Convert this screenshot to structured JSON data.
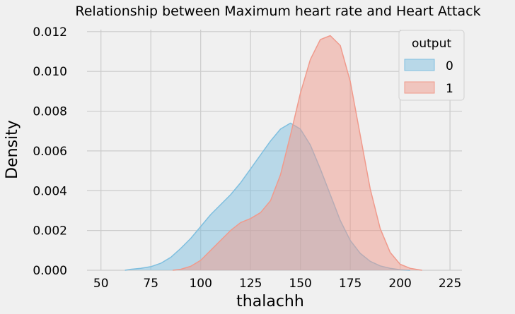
{
  "chart_data": {
    "type": "area",
    "subtype": "kde",
    "title": "Relationship between Maximum heart rate and Heart Attack",
    "xlabel": "thalachh",
    "ylabel": "Density",
    "xlim": [
      43,
      231
    ],
    "ylim": [
      0,
      0.0121
    ],
    "x_ticks": [
      50,
      75,
      100,
      125,
      150,
      175,
      200,
      225
    ],
    "y_ticks": [
      0.0,
      0.002,
      0.004,
      0.006,
      0.008,
      0.01,
      0.012
    ],
    "y_tick_labels": [
      "0.000",
      "0.002",
      "0.004",
      "0.006",
      "0.008",
      "0.010",
      "0.012"
    ],
    "grid": true,
    "legend": {
      "title": "output",
      "placement": "top-right"
    },
    "series": [
      {
        "name": "0",
        "color": "#7fbfdf",
        "x": [
          62,
          65,
          70,
          75,
          80,
          85,
          90,
          95,
          100,
          105,
          110,
          115,
          120,
          125,
          130,
          135,
          140,
          145,
          150,
          155,
          160,
          165,
          170,
          175,
          180,
          185,
          190,
          195,
          200,
          205
        ],
        "values": [
          0.0,
          5e-05,
          0.0001,
          0.00018,
          0.00035,
          0.00065,
          0.0011,
          0.0016,
          0.0022,
          0.0028,
          0.0033,
          0.0038,
          0.0044,
          0.0051,
          0.0058,
          0.0065,
          0.0071,
          0.0074,
          0.0071,
          0.0063,
          0.0051,
          0.0038,
          0.0025,
          0.0015,
          0.00085,
          0.00045,
          0.00022,
          0.0001,
          3e-05,
          0.0
        ]
      },
      {
        "name": "1",
        "color": "#f09a8c",
        "x": [
          86,
          90,
          95,
          100,
          105,
          110,
          115,
          120,
          125,
          130,
          135,
          140,
          145,
          150,
          155,
          160,
          165,
          170,
          175,
          180,
          185,
          190,
          195,
          200,
          205,
          211
        ],
        "values": [
          0.0,
          5e-05,
          0.0002,
          0.0005,
          0.001,
          0.0015,
          0.002,
          0.0024,
          0.0026,
          0.0029,
          0.0035,
          0.0048,
          0.0068,
          0.0089,
          0.0106,
          0.0116,
          0.0118,
          0.0113,
          0.0095,
          0.0068,
          0.0041,
          0.0021,
          0.0009,
          0.0003,
          0.0001,
          0.0
        ]
      }
    ]
  }
}
